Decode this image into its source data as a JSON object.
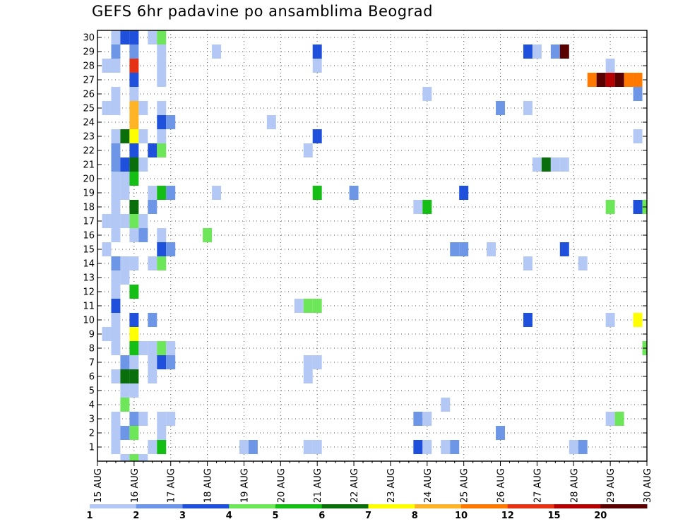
{
  "title": "GEFS 6hr padavine po ansamblima Beograd",
  "chart_data": {
    "type": "heatmap",
    "title": "GEFS 6hr padavine po ansamblima Beograd",
    "x_tick_labels": [
      "15 AUG",
      "16 AUG",
      "17 AUG",
      "18 AUG",
      "19 AUG",
      "20 AUG",
      "21 AUG",
      "22 AUG",
      "23 AUG",
      "24 AUG",
      "25 AUG",
      "26 AUG",
      "27 AUG",
      "28 AUG",
      "29 AUG",
      "30 AUG"
    ],
    "y_tick_labels": [
      "1",
      "2",
      "3",
      "4",
      "5",
      "6",
      "7",
      "8",
      "9",
      "10",
      "11",
      "12",
      "13",
      "14",
      "15",
      "16",
      "17",
      "18",
      "19",
      "20",
      "21",
      "22",
      "23",
      "24",
      "25",
      "26",
      "27",
      "28",
      "29",
      "30"
    ],
    "x_steps_per_day": 4,
    "xlim_steps": [
      0,
      60
    ],
    "ylim_members": [
      0.5,
      30.5
    ],
    "grid": "dotted",
    "colorbar": {
      "levels": [
        "1",
        "2",
        "3",
        "4",
        "5",
        "6",
        "7",
        "8",
        "10",
        "12",
        "15",
        "20"
      ],
      "colors": [
        "#b4c8f5",
        "#6e96e6",
        "#1e50dc",
        "#6ee65a",
        "#14be14",
        "#0a6e0a",
        "#ffff00",
        "#ffb428",
        "#ff7800",
        "#e63214",
        "#b40000",
        "#5a0000"
      ]
    },
    "legend_placement": "bottom",
    "cells": [
      [
        2,
        30,
        0
      ],
      [
        3,
        30,
        2
      ],
      [
        4,
        30,
        2
      ],
      [
        6,
        30,
        0
      ],
      [
        7,
        30,
        3
      ],
      [
        2,
        29,
        1
      ],
      [
        4,
        29,
        1
      ],
      [
        7,
        29,
        0
      ],
      [
        13,
        29,
        0
      ],
      [
        24,
        29,
        2
      ],
      [
        47,
        29,
        2
      ],
      [
        48,
        29,
        0
      ],
      [
        50,
        29,
        1
      ],
      [
        51,
        29,
        11
      ],
      [
        1,
        28,
        0
      ],
      [
        2,
        28,
        0
      ],
      [
        4,
        28,
        9
      ],
      [
        7,
        28,
        0
      ],
      [
        24,
        28,
        0
      ],
      [
        56,
        28,
        0
      ],
      [
        4,
        27,
        2
      ],
      [
        7,
        27,
        0
      ],
      [
        54,
        27,
        8
      ],
      [
        55,
        27,
        11
      ],
      [
        56,
        27,
        10
      ],
      [
        57,
        27,
        11
      ],
      [
        58,
        27,
        8
      ],
      [
        59,
        27,
        8
      ],
      [
        2,
        26,
        0
      ],
      [
        4,
        26,
        0
      ],
      [
        36,
        26,
        0
      ],
      [
        59,
        26,
        1
      ],
      [
        1,
        25,
        0
      ],
      [
        2,
        25,
        0
      ],
      [
        4,
        25,
        7
      ],
      [
        5,
        25,
        0
      ],
      [
        7,
        25,
        0
      ],
      [
        44,
        25,
        1
      ],
      [
        47,
        25,
        0
      ],
      [
        4,
        24,
        7
      ],
      [
        7,
        24,
        2
      ],
      [
        8,
        24,
        1
      ],
      [
        19,
        24,
        0
      ],
      [
        2,
        23,
        0
      ],
      [
        3,
        23,
        5
      ],
      [
        4,
        23,
        6
      ],
      [
        5,
        23,
        0
      ],
      [
        7,
        23,
        0
      ],
      [
        24,
        23,
        2
      ],
      [
        59,
        23,
        0
      ],
      [
        2,
        22,
        1
      ],
      [
        4,
        22,
        2
      ],
      [
        6,
        22,
        2
      ],
      [
        7,
        22,
        3
      ],
      [
        23,
        22,
        0
      ],
      [
        2,
        21,
        1
      ],
      [
        3,
        21,
        2
      ],
      [
        4,
        21,
        5
      ],
      [
        5,
        21,
        0
      ],
      [
        48,
        21,
        0
      ],
      [
        49,
        21,
        5
      ],
      [
        50,
        21,
        0
      ],
      [
        51,
        21,
        0
      ],
      [
        2,
        20,
        0
      ],
      [
        3,
        20,
        0
      ],
      [
        4,
        20,
        4
      ],
      [
        2,
        19,
        0
      ],
      [
        3,
        19,
        0
      ],
      [
        6,
        19,
        0
      ],
      [
        7,
        19,
        4
      ],
      [
        8,
        19,
        1
      ],
      [
        13,
        19,
        0
      ],
      [
        24,
        19,
        4
      ],
      [
        28,
        19,
        1
      ],
      [
        40,
        19,
        2
      ],
      [
        2,
        18,
        0
      ],
      [
        4,
        18,
        5
      ],
      [
        6,
        18,
        1
      ],
      [
        35,
        18,
        0
      ],
      [
        36,
        18,
        4
      ],
      [
        56,
        18,
        3
      ],
      [
        59,
        18,
        2
      ],
      [
        60,
        18,
        3
      ],
      [
        1,
        17,
        0
      ],
      [
        2,
        17,
        0
      ],
      [
        3,
        17,
        0
      ],
      [
        4,
        17,
        3
      ],
      [
        5,
        17,
        0
      ],
      [
        2,
        16,
        0
      ],
      [
        4,
        16,
        0
      ],
      [
        5,
        16,
        1
      ],
      [
        7,
        16,
        0
      ],
      [
        12,
        16,
        3
      ],
      [
        1,
        15,
        0
      ],
      [
        7,
        15,
        2
      ],
      [
        8,
        15,
        1
      ],
      [
        39,
        15,
        1
      ],
      [
        40,
        15,
        1
      ],
      [
        43,
        15,
        0
      ],
      [
        51,
        15,
        2
      ],
      [
        2,
        14,
        1
      ],
      [
        3,
        14,
        0
      ],
      [
        4,
        14,
        0
      ],
      [
        6,
        14,
        0
      ],
      [
        7,
        14,
        3
      ],
      [
        47,
        14,
        0
      ],
      [
        53,
        14,
        0
      ],
      [
        2,
        13,
        0
      ],
      [
        3,
        13,
        0
      ],
      [
        2,
        12,
        0
      ],
      [
        4,
        12,
        4
      ],
      [
        2,
        11,
        2
      ],
      [
        22,
        11,
        0
      ],
      [
        23,
        11,
        3
      ],
      [
        24,
        11,
        3
      ],
      [
        2,
        10,
        0
      ],
      [
        4,
        10,
        2
      ],
      [
        6,
        10,
        1
      ],
      [
        47,
        10,
        2
      ],
      [
        56,
        10,
        0
      ],
      [
        59,
        10,
        6
      ],
      [
        1,
        9,
        0
      ],
      [
        2,
        9,
        0
      ],
      [
        4,
        9,
        6
      ],
      [
        2,
        8,
        0
      ],
      [
        4,
        8,
        4
      ],
      [
        5,
        8,
        0
      ],
      [
        6,
        8,
        0
      ],
      [
        7,
        8,
        3
      ],
      [
        8,
        8,
        0
      ],
      [
        60,
        8,
        3
      ],
      [
        3,
        7,
        1
      ],
      [
        4,
        7,
        0
      ],
      [
        6,
        7,
        0
      ],
      [
        7,
        7,
        2
      ],
      [
        8,
        7,
        1
      ],
      [
        23,
        7,
        0
      ],
      [
        24,
        7,
        0
      ],
      [
        2,
        6,
        0
      ],
      [
        3,
        6,
        5
      ],
      [
        4,
        6,
        5
      ],
      [
        6,
        6,
        0
      ],
      [
        23,
        6,
        0
      ],
      [
        3,
        5,
        0
      ],
      [
        4,
        5,
        0
      ],
      [
        3,
        4,
        3
      ],
      [
        38,
        4,
        0
      ],
      [
        2,
        3,
        0
      ],
      [
        4,
        3,
        1
      ],
      [
        5,
        3,
        0
      ],
      [
        7,
        3,
        0
      ],
      [
        8,
        3,
        0
      ],
      [
        35,
        3,
        1
      ],
      [
        36,
        3,
        0
      ],
      [
        56,
        3,
        0
      ],
      [
        57,
        3,
        3
      ],
      [
        2,
        2,
        0
      ],
      [
        3,
        2,
        1
      ],
      [
        4,
        2,
        3
      ],
      [
        7,
        2,
        0
      ],
      [
        44,
        2,
        1
      ],
      [
        2,
        1,
        0
      ],
      [
        6,
        1,
        0
      ],
      [
        7,
        1,
        4
      ],
      [
        16,
        1,
        0
      ],
      [
        17,
        1,
        1
      ],
      [
        23,
        1,
        0
      ],
      [
        24,
        1,
        0
      ],
      [
        35,
        1,
        2
      ],
      [
        36,
        1,
        0
      ],
      [
        38,
        1,
        0
      ],
      [
        39,
        1,
        1
      ],
      [
        52,
        1,
        0
      ],
      [
        53,
        1,
        1
      ],
      [
        3,
        0,
        0
      ],
      [
        4,
        0,
        3
      ],
      [
        5,
        0,
        0
      ]
    ]
  }
}
